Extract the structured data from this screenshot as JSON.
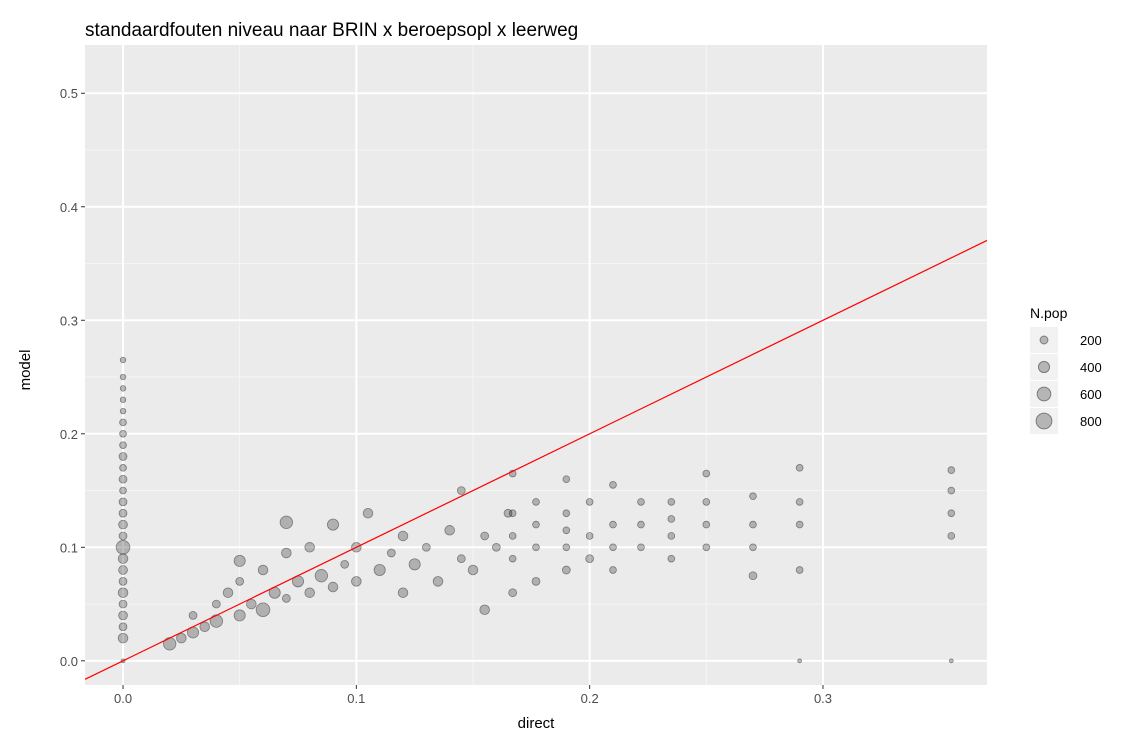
{
  "chart_data": {
    "type": "scatter",
    "title": "standaardfouten niveau naar BRIN x beroepsopl x leerweg",
    "x_label": "direct",
    "y_label": "model",
    "x": [
      0,
      0,
      0,
      0,
      0,
      0,
      0,
      0,
      0,
      0,
      0,
      0,
      0,
      0,
      0,
      0,
      0,
      0,
      0,
      0,
      0,
      0,
      0,
      0,
      0,
      0,
      0.02,
      0.025,
      0.03,
      0.03,
      0.035,
      0.04,
      0.04,
      0.045,
      0.05,
      0.05,
      0.055,
      0.06,
      0.06,
      0.065,
      0.07,
      0.07,
      0.075,
      0.08,
      0.08,
      0.085,
      0.09,
      0.09,
      0.095,
      0.1,
      0.1,
      0.105,
      0.11,
      0.115,
      0.12,
      0.12,
      0.125,
      0.13,
      0.135,
      0.14,
      0.145,
      0.145,
      0.15,
      0.155,
      0.155,
      0.16,
      0.165,
      0.07,
      0.05,
      0.167,
      0.167,
      0.167,
      0.167,
      0.167,
      0.177,
      0.177,
      0.177,
      0.177,
      0.19,
      0.19,
      0.19,
      0.19,
      0.19,
      0.2,
      0.2,
      0.2,
      0.21,
      0.21,
      0.21,
      0.21,
      0.222,
      0.222,
      0.222,
      0.235,
      0.235,
      0.235,
      0.235,
      0.25,
      0.25,
      0.25,
      0.25,
      0.27,
      0.27,
      0.27,
      0.27,
      0.29,
      0.29,
      0.29,
      0.29,
      0.29,
      0.355,
      0.355,
      0.355,
      0.355,
      0.355
    ],
    "values": [
      0,
      0.02,
      0.03,
      0.04,
      0.05,
      0.06,
      0.07,
      0.08,
      0.09,
      0.1,
      0.11,
      0.12,
      0.13,
      0.14,
      0.15,
      0.16,
      0.17,
      0.18,
      0.19,
      0.2,
      0.21,
      0.22,
      0.23,
      0.24,
      0.25,
      0.265,
      0.015,
      0.02,
      0.025,
      0.04,
      0.03,
      0.035,
      0.05,
      0.06,
      0.04,
      0.07,
      0.05,
      0.045,
      0.08,
      0.06,
      0.055,
      0.095,
      0.07,
      0.06,
      0.1,
      0.075,
      0.065,
      0.12,
      0.085,
      0.07,
      0.1,
      0.13,
      0.08,
      0.095,
      0.06,
      0.11,
      0.085,
      0.1,
      0.07,
      0.115,
      0.09,
      0.15,
      0.08,
      0.11,
      0.045,
      0.1,
      0.13,
      0.122,
      0.088,
      0.06,
      0.09,
      0.11,
      0.13,
      0.165,
      0.07,
      0.1,
      0.12,
      0.14,
      0.08,
      0.1,
      0.115,
      0.13,
      0.16,
      0.09,
      0.11,
      0.14,
      0.08,
      0.1,
      0.12,
      0.155,
      0.1,
      0.12,
      0.14,
      0.09,
      0.11,
      0.125,
      0.14,
      0.1,
      0.12,
      0.14,
      0.165,
      0.075,
      0.1,
      0.12,
      0.145,
      0,
      0.08,
      0.12,
      0.14,
      0.17,
      0,
      0.11,
      0.13,
      0.15,
      0.168
    ],
    "sizes": [
      50,
      300,
      200,
      250,
      200,
      300,
      200,
      250,
      300,
      600,
      200,
      250,
      200,
      200,
      150,
      200,
      150,
      200,
      150,
      150,
      150,
      100,
      100,
      100,
      100,
      100,
      500,
      300,
      400,
      200,
      300,
      500,
      200,
      300,
      400,
      200,
      300,
      600,
      300,
      400,
      200,
      300,
      400,
      300,
      300,
      500,
      300,
      400,
      200,
      300,
      300,
      300,
      400,
      200,
      300,
      300,
      400,
      200,
      300,
      300,
      200,
      200,
      300,
      200,
      300,
      200,
      200,
      500,
      400,
      200,
      150,
      150,
      150,
      150,
      200,
      150,
      150,
      150,
      200,
      150,
      150,
      150,
      150,
      200,
      150,
      150,
      150,
      150,
      150,
      150,
      150,
      150,
      150,
      150,
      150,
      150,
      150,
      150,
      150,
      150,
      150,
      200,
      150,
      150,
      150,
      50,
      150,
      150,
      150,
      150,
      50,
      150,
      150,
      150,
      150
    ],
    "color": "#000000",
    "alpha": 0.25,
    "xlim": [
      -0.0163,
      0.3703
    ],
    "ylim": [
      -0.0213,
      0.5425
    ],
    "xticks": [
      {
        "value": 0,
        "label": "0.0"
      },
      0.1,
      0.2,
      0.3
    ],
    "yticks": [
      {
        "value": 0,
        "label": "0.0"
      },
      0.1,
      0.2,
      0.3,
      0.4,
      0.5
    ],
    "grid": true,
    "reference_line": {
      "slope": 1,
      "intercept": 0,
      "color": "#ff0000"
    },
    "size_legend": {
      "title": "N.pop",
      "values": [
        200,
        400,
        600,
        800
      ]
    }
  }
}
